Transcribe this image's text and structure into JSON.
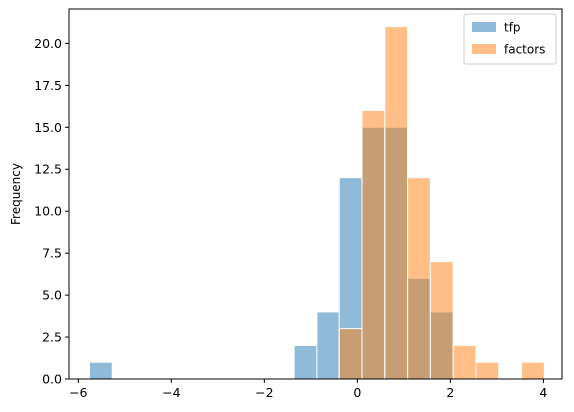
{
  "chart_data": {
    "type": "histogram",
    "ylabel": "Frequency",
    "xlim": [
      -6.2,
      4.4
    ],
    "ylim": [
      0,
      22.05
    ],
    "xticks": [
      -6,
      -4,
      -2,
      0,
      2,
      4
    ],
    "xtick_labels": [
      "−6",
      "−4",
      "−2",
      "0",
      "2",
      "4"
    ],
    "yticks": [
      0,
      2.5,
      5,
      7.5,
      10,
      12.5,
      15,
      17.5,
      20
    ],
    "ytick_labels": [
      "0.0",
      "2.5",
      "5.0",
      "7.5",
      "10.0",
      "12.5",
      "15.0",
      "17.5",
      "20.0"
    ],
    "legend_position": "top-right",
    "series": [
      {
        "name": "tfp",
        "color": "#1f77b4",
        "alpha": 0.5,
        "bins": [
          {
            "x0": -5.76,
            "x1": -5.27,
            "count": 1
          },
          {
            "x0": -1.36,
            "x1": -0.87,
            "count": 2
          },
          {
            "x0": -0.87,
            "x1": -0.39,
            "count": 4
          },
          {
            "x0": -0.39,
            "x1": 0.1,
            "count": 12
          },
          {
            "x0": 0.1,
            "x1": 0.59,
            "count": 15
          },
          {
            "x0": 0.59,
            "x1": 1.08,
            "count": 15
          },
          {
            "x0": 1.08,
            "x1": 1.57,
            "count": 6
          },
          {
            "x0": 1.57,
            "x1": 2.06,
            "count": 4
          }
        ]
      },
      {
        "name": "factors",
        "color": "#ff7f0e",
        "alpha": 0.5,
        "bins": [
          {
            "x0": -0.39,
            "x1": 0.1,
            "count": 3
          },
          {
            "x0": 0.1,
            "x1": 0.59,
            "count": 16
          },
          {
            "x0": 0.59,
            "x1": 1.08,
            "count": 21
          },
          {
            "x0": 1.08,
            "x1": 1.57,
            "count": 12
          },
          {
            "x0": 1.57,
            "x1": 2.06,
            "count": 7
          },
          {
            "x0": 2.06,
            "x1": 2.55,
            "count": 2
          },
          {
            "x0": 2.55,
            "x1": 3.04,
            "count": 1
          },
          {
            "x0": 3.53,
            "x1": 4.02,
            "count": 1
          }
        ]
      }
    ]
  }
}
